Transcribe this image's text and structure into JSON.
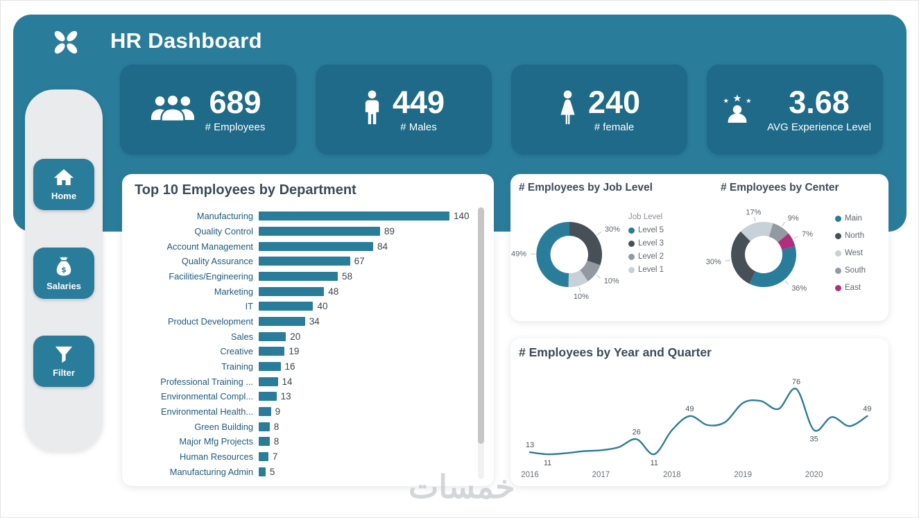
{
  "colors": {
    "teal": "#2A7C9B",
    "card_teal": "#1E6A88",
    "dark_gray": "#474F57",
    "mid_gray": "#919AA1",
    "silver": "#C8D0D8",
    "magenta": "#B02E7C",
    "title_text": "#3A4A5C"
  },
  "header": {
    "title": "HR Dashboard"
  },
  "kpis": [
    {
      "icon": "people-icon",
      "value": "689",
      "label": "# Employees"
    },
    {
      "icon": "male-icon",
      "value": "449",
      "label": "# Males"
    },
    {
      "icon": "female-icon",
      "value": "240",
      "label": "# female"
    },
    {
      "icon": "person-stars-icon",
      "value": "3.68",
      "label": "AVG Experience Level"
    }
  ],
  "sidebar": {
    "items": [
      {
        "icon": "home-icon",
        "label": "Home"
      },
      {
        "icon": "money-bag-icon",
        "label": "Salaries"
      },
      {
        "icon": "filter-icon",
        "label": "Filter"
      }
    ]
  },
  "watermark": {
    "text": "خمسات"
  },
  "chart_data": [
    {
      "type": "bar",
      "orientation": "horizontal",
      "title": "Top 10 Employees by Department",
      "categories": [
        "Manufacturing",
        "Quality Control",
        "Account Management",
        "Quality Assurance",
        "Facilities/Engineering",
        "Marketing",
        "IT",
        "Product Development",
        "Sales",
        "Creative",
        "Training",
        "Professional Training ...",
        "Environmental Compl...",
        "Environmental Health...",
        "Green Building",
        "Major Mfg Projects",
        "Human Resources",
        "Manufacturing Admin"
      ],
      "values": [
        140,
        89,
        84,
        67,
        58,
        48,
        40,
        34,
        20,
        19,
        16,
        14,
        13,
        9,
        8,
        8,
        7,
        5
      ],
      "bar_color": "#2A7C9B",
      "xlim": [
        0,
        150
      ],
      "has_scrollbar": true
    },
    {
      "type": "pie",
      "title": "# Employees by Job Level",
      "legend_title": "Job Level",
      "legend_position": "right",
      "labels": [
        "Level 5",
        "Level 3",
        "Level 2",
        "Level 1"
      ],
      "values": [
        49,
        30,
        10,
        10
      ],
      "unit": "%",
      "colors": [
        "#2A7C9B",
        "#474F57",
        "#919AA1",
        "#C8D0D8"
      ],
      "draw_order": [
        1,
        2,
        3,
        0
      ],
      "start_angle": 0
    },
    {
      "type": "pie",
      "title": "# Employees by Center",
      "legend_position": "right",
      "labels": [
        "Main",
        "North",
        "West",
        "South",
        "East"
      ],
      "values": [
        36,
        30,
        17,
        9,
        7
      ],
      "unit": "%",
      "colors": [
        "#2A7C9B",
        "#474F57",
        "#C8D0D8",
        "#919AA1",
        "#B02E7C"
      ],
      "draw_order": [
        2,
        3,
        4,
        0,
        1
      ],
      "start_angle": -45
    },
    {
      "type": "line",
      "title": "# Employees by Year and Quarter",
      "x_year_labels": [
        "2016",
        "2017",
        "2018",
        "2019",
        "2020"
      ],
      "year_indices": [
        0,
        4,
        8,
        12,
        16
      ],
      "values": [
        13,
        11,
        12,
        14,
        15,
        18,
        26,
        11,
        35,
        49,
        40,
        43,
        62,
        64,
        56,
        76,
        35,
        48,
        39,
        49
      ],
      "labeled_points": [
        {
          "index": 0,
          "text": "13",
          "position": "above"
        },
        {
          "index": 1,
          "text": "11",
          "position": "below"
        },
        {
          "index": 6,
          "text": "26",
          "position": "above"
        },
        {
          "index": 7,
          "text": "11",
          "position": "below"
        },
        {
          "index": 9,
          "text": "49",
          "position": "above"
        },
        {
          "index": 15,
          "text": "76",
          "position": "above"
        },
        {
          "index": 16,
          "text": "35",
          "position": "below"
        },
        {
          "index": 19,
          "text": "49",
          "position": "above"
        }
      ],
      "line_color": "#2A7C9B",
      "ylim": [
        0,
        85
      ],
      "grid": false
    }
  ]
}
